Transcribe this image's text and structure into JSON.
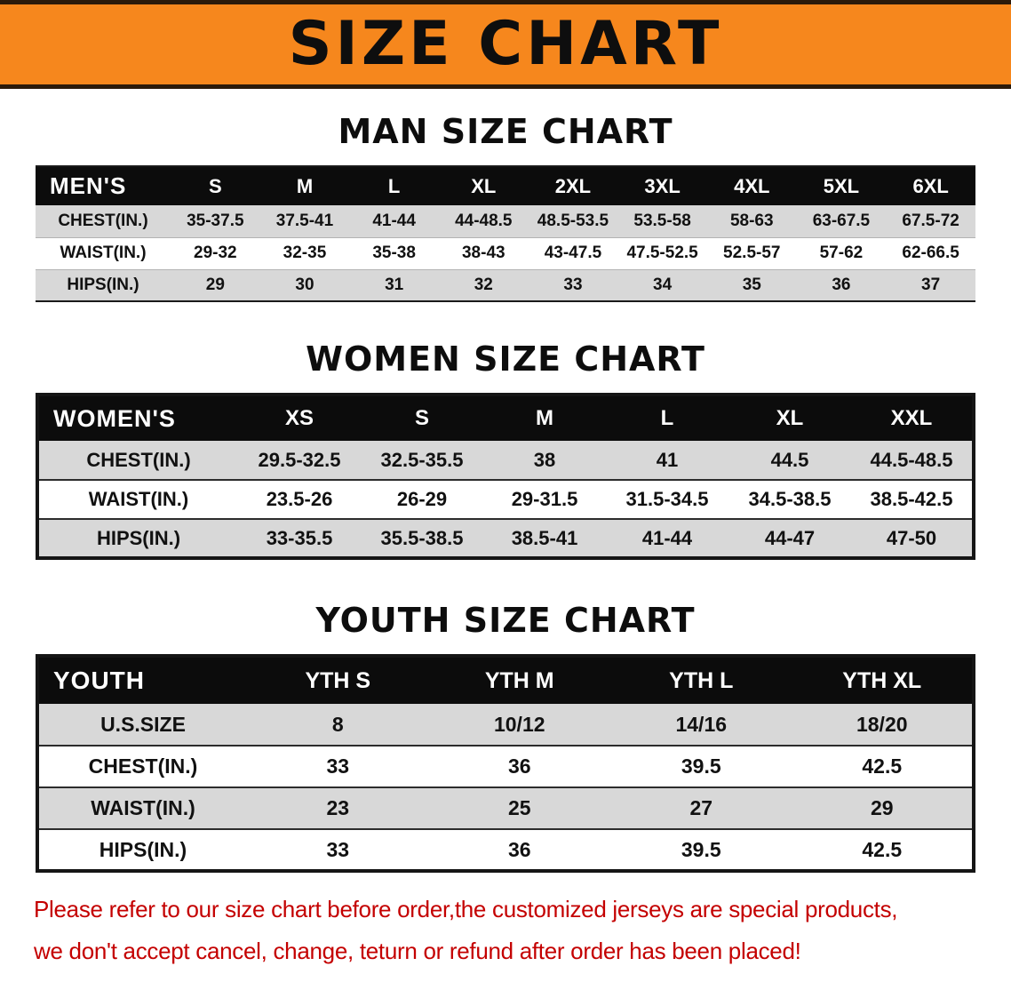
{
  "banner": {
    "title": "SIZE CHART"
  },
  "colors": {
    "banner_bg": "#f6871d",
    "banner_text": "#0e0e0e",
    "table_header_bg": "#0c0c0c",
    "table_header_text": "#ffffff",
    "row_alt_bg": "#d8d8d8",
    "row_bg": "#ffffff",
    "note_color": "#c40000"
  },
  "chart_data": [
    {
      "type": "table",
      "title": "MAN SIZE CHART",
      "corner_label": "MEN'S",
      "columns": [
        "S",
        "M",
        "L",
        "XL",
        "2XL",
        "3XL",
        "4XL",
        "5XL",
        "6XL"
      ],
      "rows": [
        {
          "label": "CHEST(IN.)",
          "values": [
            "35-37.5",
            "37.5-41",
            "41-44",
            "44-48.5",
            "48.5-53.5",
            "53.5-58",
            "58-63",
            "63-67.5",
            "67.5-72"
          ]
        },
        {
          "label": "WAIST(IN.)",
          "values": [
            "29-32",
            "32-35",
            "35-38",
            "38-43",
            "43-47.5",
            "47.5-52.5",
            "52.5-57",
            "57-62",
            "62-66.5"
          ]
        },
        {
          "label": "HIPS(IN.)",
          "values": [
            "29",
            "30",
            "31",
            "32",
            "33",
            "34",
            "35",
            "36",
            "37"
          ]
        }
      ]
    },
    {
      "type": "table",
      "title": "WOMEN SIZE CHART",
      "corner_label": "WOMEN'S",
      "columns": [
        "XS",
        "S",
        "M",
        "L",
        "XL",
        "XXL"
      ],
      "rows": [
        {
          "label": "CHEST(IN.)",
          "values": [
            "29.5-32.5",
            "32.5-35.5",
            "38",
            "41",
            "44.5",
            "44.5-48.5"
          ]
        },
        {
          "label": "WAIST(IN.)",
          "values": [
            "23.5-26",
            "26-29",
            "29-31.5",
            "31.5-34.5",
            "34.5-38.5",
            "38.5-42.5"
          ]
        },
        {
          "label": "HIPS(IN.)",
          "values": [
            "33-35.5",
            "35.5-38.5",
            "38.5-41",
            "41-44",
            "44-47",
            "47-50"
          ]
        }
      ]
    },
    {
      "type": "table",
      "title": "YOUTH SIZE CHART",
      "corner_label": "YOUTH",
      "columns": [
        "YTH S",
        "YTH M",
        "YTH L",
        "YTH XL"
      ],
      "rows": [
        {
          "label": "U.S.SIZE",
          "values": [
            "8",
            "10/12",
            "14/16",
            "18/20"
          ]
        },
        {
          "label": "CHEST(IN.)",
          "values": [
            "33",
            "36",
            "39.5",
            "42.5"
          ]
        },
        {
          "label": "WAIST(IN.)",
          "values": [
            "23",
            "25",
            "27",
            "29"
          ]
        },
        {
          "label": "HIPS(IN.)",
          "values": [
            "33",
            "36",
            "39.5",
            "42.5"
          ]
        }
      ]
    }
  ],
  "note": {
    "lines": [
      "Please refer to our size chart before order,the customized jerseys are special products,",
      "we don't accept cancel, change, teturn or refund after order has been placed!"
    ]
  }
}
